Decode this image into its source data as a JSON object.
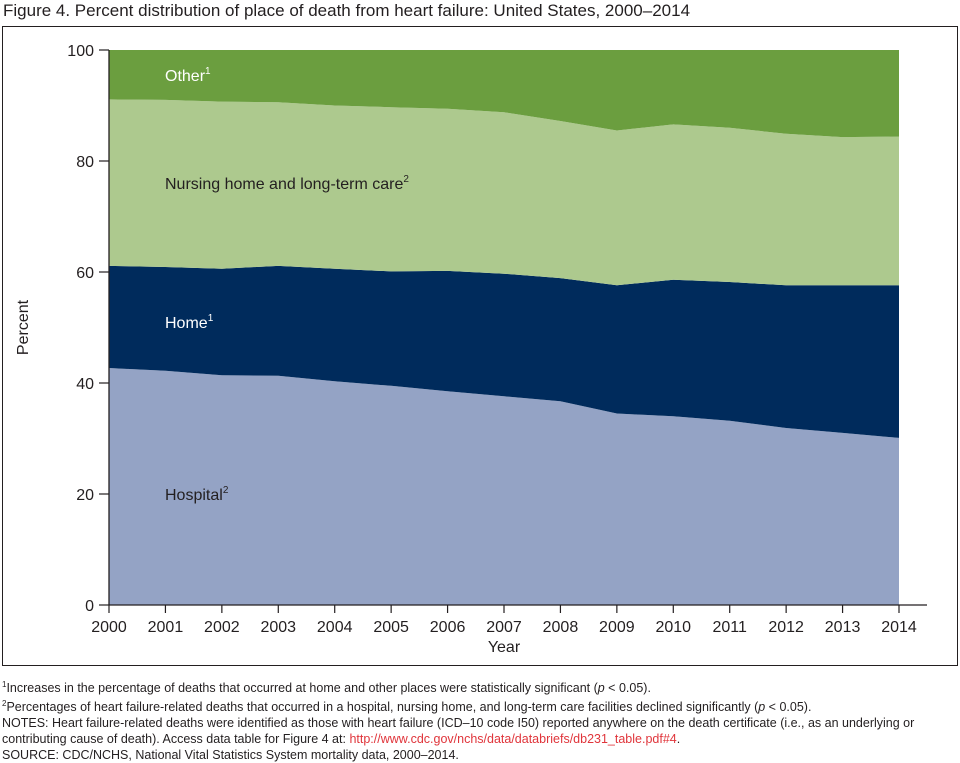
{
  "figure": {
    "title": "Figure 4. Percent distribution of place of death from heart failure: United States, 2000–2014"
  },
  "chart_data": {
    "type": "area",
    "stacked": true,
    "title": "Figure 4. Percent distribution of place of death from heart failure: United States, 2000–2014",
    "xlabel": "Year",
    "ylabel": "Percent",
    "ylim": [
      0,
      100
    ],
    "yticks": [
      0,
      20,
      40,
      60,
      80,
      100
    ],
    "x": [
      "2000",
      "2001",
      "2002",
      "2003",
      "2004",
      "2005",
      "2006",
      "2007",
      "2008",
      "2009",
      "2010",
      "2011",
      "2012",
      "2013",
      "2014"
    ],
    "series": [
      {
        "name": "Hospital",
        "sup": "2",
        "color": "#94a3c5",
        "values": [
          42.7,
          42.2,
          41.4,
          41.3,
          40.3,
          39.5,
          38.5,
          37.6,
          36.7,
          34.5,
          34.0,
          33.2,
          31.9,
          31.0,
          30.1
        ]
      },
      {
        "name": "Home",
        "sup": "1",
        "color": "#002b5c",
        "values": [
          18.4,
          18.7,
          19.2,
          19.8,
          20.3,
          20.6,
          21.7,
          22.1,
          22.2,
          23.1,
          24.6,
          25.0,
          25.7,
          26.6,
          27.5
        ]
      },
      {
        "name": "Nursing home and long-term care",
        "sup": "2",
        "color": "#adc98e",
        "values": [
          30.0,
          30.1,
          30.1,
          29.5,
          29.4,
          29.6,
          29.2,
          29.1,
          28.3,
          27.9,
          28.0,
          27.8,
          27.3,
          26.7,
          26.8
        ]
      },
      {
        "name": "Other",
        "sup": "1",
        "color": "#6b9e3f",
        "values": [
          8.9,
          9.0,
          9.3,
          9.4,
          10.0,
          10.3,
          10.6,
          11.2,
          12.8,
          14.5,
          13.4,
          14.0,
          15.1,
          15.7,
          15.6
        ]
      }
    ],
    "series_labels": [
      {
        "series": "Hospital",
        "at_y": 20
      },
      {
        "series": "Home",
        "at_y": 51
      },
      {
        "series": "Nursing home and long-term care",
        "at_y": 76
      },
      {
        "series": "Other",
        "at_y": 95.5
      }
    ]
  },
  "notes": {
    "footnote1": "Increases in the percentage of deaths that occurred at home and other places were statistically significant (",
    "footnote1_p": "p",
    "footnote1_end": " < 0.05).",
    "footnote2": "Percentages of heart failure-related deaths that occurred in a hospital, nursing home, and long-term care facilities declined significantly (",
    "footnote2_p": "p",
    "footnote2_end": " < 0.05).",
    "notes_text": "NOTES: Heart failure-related deaths were identified as those with heart failure (ICD–10 code I50) reported anywhere on the death certificate (i.e., as an underlying or contributing cause of death). Access data table for Figure 4 at: ",
    "notes_url": "http://www.cdc.gov/nchs/data/databriefs/db231_table.pdf#4",
    "notes_end": ".",
    "source": "SOURCE: CDC/NCHS, National Vital Statistics System mortality data, 2000–2014."
  }
}
